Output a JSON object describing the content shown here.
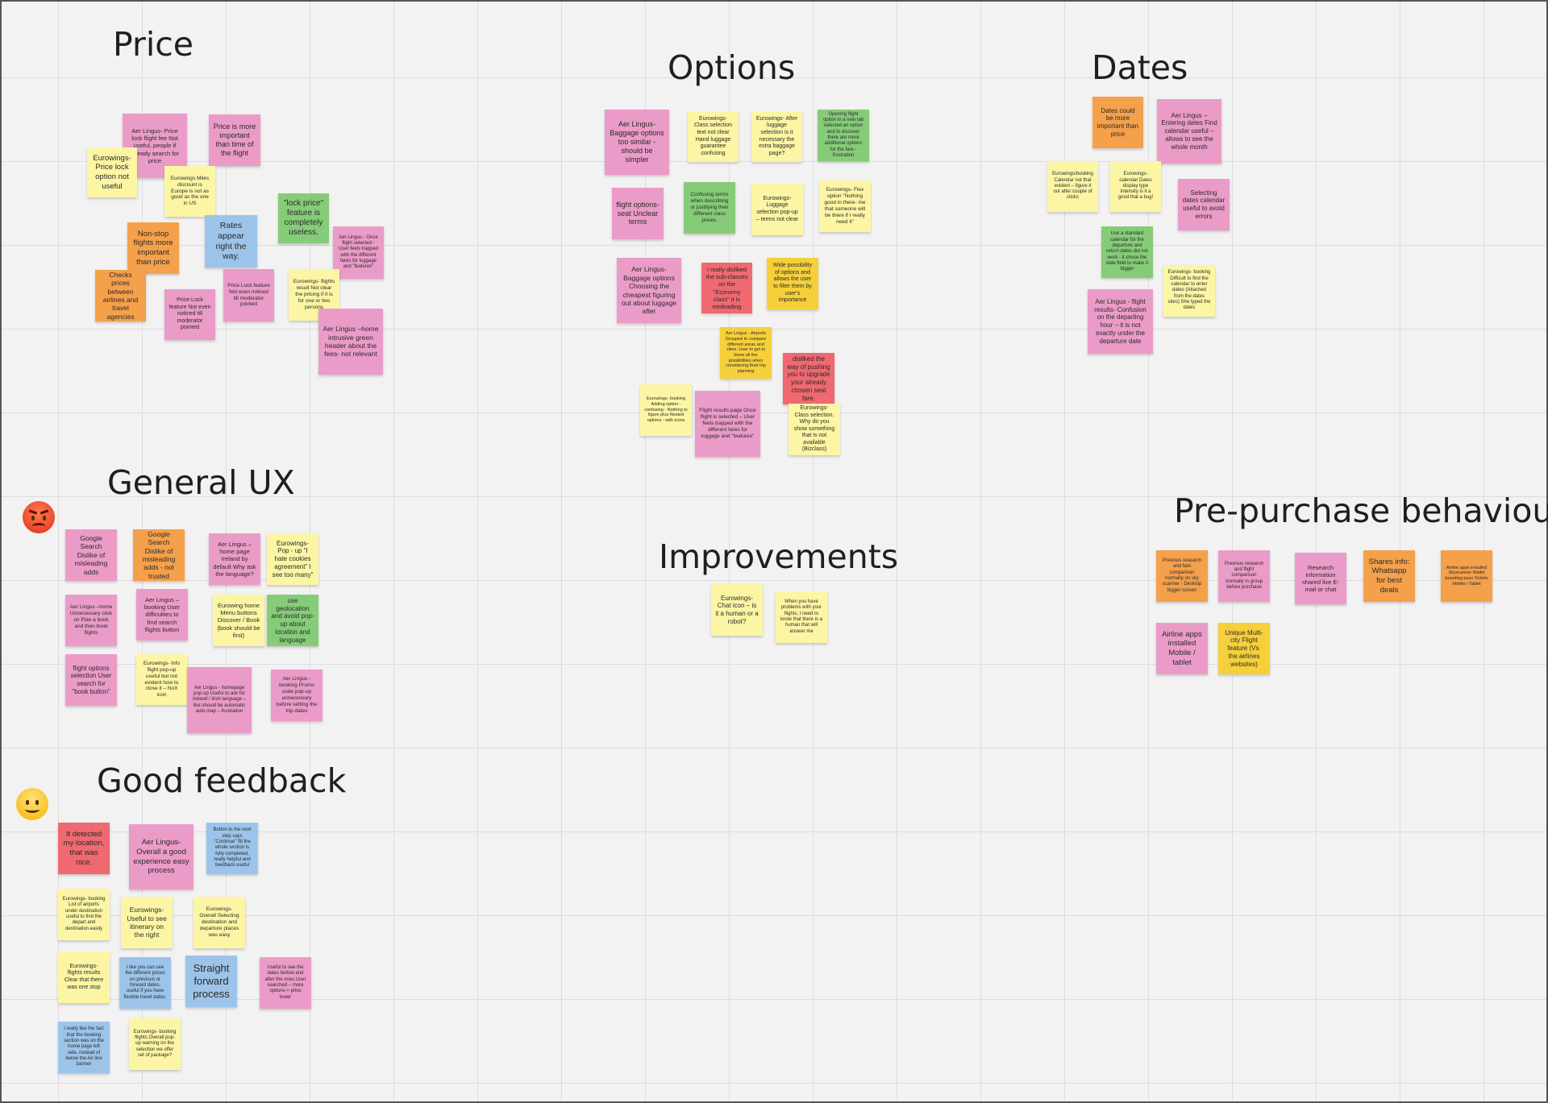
{
  "colors": {
    "yellow": "#fcf6a4",
    "pink": "#eb9bc8",
    "orange": "#f5a04a",
    "green": "#86cc78",
    "blue": "#9cc4ea",
    "red": "#f06870",
    "gold": "#f6d03a"
  },
  "emojis": [
    {
      "name": "angry-face-icon",
      "icon": "angry-face"
    },
    {
      "name": "smiling-face-icon",
      "icon": "smiling-face"
    }
  ],
  "headings": {
    "price": "Price",
    "options": "Options",
    "dates": "Dates",
    "general_ux": "General UX",
    "improvements": "Improvements",
    "pre_purchase": "Pre-purchase behaviour",
    "good_feedback": "Good feedback"
  },
  "notes": [
    {
      "name": "note-price-1",
      "color": "pink",
      "text": "Aer Lingus- Price lock flight fee Not useful, people if already search for price"
    },
    {
      "name": "note-price-2",
      "color": "pink",
      "text": "Price is more important than time of the flight"
    },
    {
      "name": "note-price-3",
      "color": "yellow",
      "text": "Eurowings- Price lock option not useful"
    },
    {
      "name": "note-price-4",
      "color": "yellow",
      "text": "Eurowings Miles discount is Europe is not as good as the one in US"
    },
    {
      "name": "note-price-5",
      "color": "green",
      "text": "\"lock price\" feature is completely useless."
    },
    {
      "name": "note-price-6",
      "color": "orange",
      "text": "Non-stop flights more important than price"
    },
    {
      "name": "note-price-7",
      "color": "blue",
      "text": "Rates appear right the way."
    },
    {
      "name": "note-price-8",
      "color": "pink",
      "text": "Aer Lingus - Once flight selected - User feels trapped with the different fares for luggage and \"features\""
    },
    {
      "name": "note-price-9",
      "color": "orange",
      "text": "Checks prices between airlines and travel agencies"
    },
    {
      "name": "note-price-10",
      "color": "pink",
      "text": "Price Lock feature Not even noticed till moderator pointed"
    },
    {
      "name": "note-price-11",
      "color": "pink",
      "text": "Price Lock feature Not even noticed till moderator pointed"
    },
    {
      "name": "note-price-12",
      "color": "yellow",
      "text": "Eurowings- flights result Not clear the pricing if it is for one or two persons"
    },
    {
      "name": "note-price-13",
      "color": "pink",
      "text": "Aer Lingus –home intrusive green header about the fees- not relevant"
    },
    {
      "name": "note-options-1",
      "color": "pink",
      "text": "Aer Lingus- Baggage options too similar - should be simpler"
    },
    {
      "name": "note-options-2",
      "color": "yellow",
      "text": "Eurowings- Class selection text not clear Hand luggage guarantee confusing"
    },
    {
      "name": "note-options-3",
      "color": "yellow",
      "text": "Eurowings- After luggage selection is it necessary the extra baggage page?"
    },
    {
      "name": "note-options-4",
      "color": "green",
      "text": "Opening flight option in a new tab selected an option and to discover there are more additional options for the fare - frustration"
    },
    {
      "name": "note-options-5",
      "color": "pink",
      "text": "flight options- seat Unclear terms"
    },
    {
      "name": "note-options-6",
      "color": "green",
      "text": "Confusing terms when describing or justifying their different class prices."
    },
    {
      "name": "note-options-7",
      "color": "yellow",
      "text": "Eurowings- Luggage selection pop-up – terms not clear"
    },
    {
      "name": "note-options-8",
      "color": "yellow",
      "text": "Eurowings- Flex option \"Nothing good in there- me that someone will be there if I really need it\""
    },
    {
      "name": "note-options-9",
      "color": "pink",
      "text": "Aer Lingus- Baggage options Choosing the cheapest figuring out about luggage after"
    },
    {
      "name": "note-options-10",
      "color": "red",
      "text": "I really disliked the sub-classes on the \"Economy class\" it is misleading"
    },
    {
      "name": "note-options-11",
      "color": "gold",
      "text": "Wide possibility of options and allows the user to filter them by user's importance"
    },
    {
      "name": "note-options-12",
      "color": "gold",
      "text": "Aer Lingus - Airports Grouped to compare different areas and cities. User to get to know all the possibilities when considering their trip planning"
    },
    {
      "name": "note-options-13",
      "color": "red",
      "text": "disliked the way of pushing you to upgrade your already chosen seat fare."
    },
    {
      "name": "note-options-14",
      "color": "yellow",
      "text": "Eurowings- booking Adding option - confusing - Nothing to figure plus Nested options - with icons"
    },
    {
      "name": "note-options-15",
      "color": "pink",
      "text": "Flight results page Once flight is selected – User feels trapped with the different fares for luggage and \"features\""
    },
    {
      "name": "note-options-16",
      "color": "yellow",
      "text": "Eurowings- Class selection. Why do you show something that is not available (Bizclass)"
    },
    {
      "name": "note-dates-1",
      "color": "orange",
      "text": "Dates could be more important than price"
    },
    {
      "name": "note-dates-2",
      "color": "pink",
      "text": "Aer Lingus –Entering dates Find calendar useful – allows to see the whole month"
    },
    {
      "name": "note-dates-3",
      "color": "yellow",
      "text": "Eurowings/booking Calendar not that evident – figure it out after couple of clicks"
    },
    {
      "name": "note-dates-4",
      "color": "yellow",
      "text": "Eurowings- calendar Dates display type Intensity is it a good that a bug!"
    },
    {
      "name": "note-dates-5",
      "color": "pink",
      "text": "Selecting dates calendar useful to avoid errors"
    },
    {
      "name": "note-dates-6",
      "color": "green",
      "text": "Use a standard calendar for the departure and return dates did not work - it chose the date field to make it bigger"
    },
    {
      "name": "note-dates-7",
      "color": "yellow",
      "text": "Eurowings- booking Difficult to find the calendar to enter dates (Attached from the dates sites) She typed the dates"
    },
    {
      "name": "note-dates-8",
      "color": "pink",
      "text": "Aer Lingus - flight results- Confusion on the departing hour – it is not exactly under the departure date"
    },
    {
      "name": "note-ux-1",
      "color": "pink",
      "text": "Google Search Dislike of misleading adds"
    },
    {
      "name": "note-ux-2",
      "color": "orange",
      "text": "Google Search Dislike of misleading adds - not trusted"
    },
    {
      "name": "note-ux-3",
      "color": "pink",
      "text": "Aer Lingus – home page Ireland by default Why ask the language?"
    },
    {
      "name": "note-ux-4",
      "color": "yellow",
      "text": "Eurowings- Pop - up \"I hate cookies agreement\" I see too many\""
    },
    {
      "name": "note-ux-5",
      "color": "pink",
      "text": "Aer Lingus –home Unnecessary click on Plan a book and then book flights"
    },
    {
      "name": "note-ux-6",
      "color": "pink",
      "text": "Aer Lingus – booking User difficulties to find search flights button"
    },
    {
      "name": "note-ux-7",
      "color": "yellow",
      "text": "Eurowing home Menu buttons Discover / Book (book should be first)"
    },
    {
      "name": "note-ux-8",
      "color": "green",
      "text": "use geolocation and avoid pop-up about location and language"
    },
    {
      "name": "note-ux-9",
      "color": "pink",
      "text": "flight options selection User search for \"book button\""
    },
    {
      "name": "note-ux-10",
      "color": "yellow",
      "text": "Eurowings- Info flight pop-up useful but not evident how to close it – NoX icon"
    },
    {
      "name": "note-ux-11",
      "color": "pink",
      "text": "Aer Lingus - homepage pop-up Useful to ask for Ireland / Irish language – But should be automatic auto map – frustration"
    },
    {
      "name": "note-ux-12",
      "color": "pink",
      "text": "Aer Lingus - booking Promo code pop-up unnecessary before setting the trip dates"
    },
    {
      "name": "note-improve-1",
      "color": "yellow",
      "text": "Eurowings- Chat icon – is it a human or a robot?"
    },
    {
      "name": "note-improve-2",
      "color": "yellow",
      "text": "When you have problems with your flights, I need to know that there is a human that will answer me"
    },
    {
      "name": "note-pre-1",
      "color": "orange",
      "text": "Previous research and fare comparison normally on sky scanner - Desktop bigger screen"
    },
    {
      "name": "note-pre-2",
      "color": "pink",
      "text": "Previous research and flight comparison normally in group before purchase"
    },
    {
      "name": "note-pre-3",
      "color": "pink",
      "text": "Research information shared live E-mail or chat"
    },
    {
      "name": "note-pre-4",
      "color": "orange",
      "text": "Shares info: Whatsapp for best deals"
    },
    {
      "name": "note-pre-5",
      "color": "orange",
      "text": "Airline apps installed Skyscanner Wallet boarding pass Tickets Mobile / Tablet"
    },
    {
      "name": "note-pre-6",
      "color": "pink",
      "text": "Airline apps installed Mobile / tablet"
    },
    {
      "name": "note-pre-7",
      "color": "gold",
      "text": "Unique Multi-city Flight feature (Vs. the airlines websites)"
    },
    {
      "name": "note-good-1",
      "color": "red",
      "text": "It detected my location, that was nice."
    },
    {
      "name": "note-good-2",
      "color": "pink",
      "text": "Aer Lingus- Overall a good experience easy process"
    },
    {
      "name": "note-good-3",
      "color": "blue",
      "text": "Button to the next step says \"Continue\" fill the whole section is fully completed, really helpful and feedback useful"
    },
    {
      "name": "note-good-4",
      "color": "yellow",
      "text": "Eurowings- booking List of airports under destination useful to find the depart and destination easily"
    },
    {
      "name": "note-good-5",
      "color": "yellow",
      "text": "Eurowings- Useful to see itinerary on the right"
    },
    {
      "name": "note-good-6",
      "color": "yellow",
      "text": "Eurowings- Overall Selecting destination and departure places was easy"
    },
    {
      "name": "note-good-7",
      "color": "yellow",
      "text": "Eurowings- flights results Clear that there was one stop"
    },
    {
      "name": "note-good-8",
      "color": "blue",
      "text": "I like you can see the different prices on previous or forward dates, useful if you have flexible travel dates."
    },
    {
      "name": "note-good-9",
      "color": "blue",
      "text": "Straight forward process"
    },
    {
      "name": "note-good-10",
      "color": "pink",
      "text": "Useful to see the dates before and after the ones User searched – more options = price lower"
    },
    {
      "name": "note-good-11",
      "color": "blue",
      "text": "I really like the fact that the booking section was on the home page left side, instead of below the Air line banner"
    },
    {
      "name": "note-good-12",
      "color": "yellow",
      "text": "Eurowings- booking flights Overall pop-up warning on the selection we offer set of package?"
    }
  ]
}
